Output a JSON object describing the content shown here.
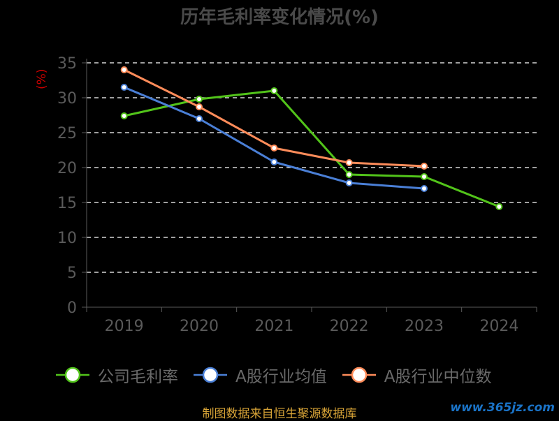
{
  "title": "历年毛利率变化情况(%)",
  "ylabel": "(%)",
  "footer": "制图数据来自恒生聚源数据库",
  "watermark": "www.365jz.com",
  "colors": {
    "background": "#000000",
    "axis": "#5a5a5a",
    "tick_label": "#5a5a5a",
    "grid": "#ffffff"
  },
  "chart_data": {
    "type": "line",
    "title": "历年毛利率变化情况(%)",
    "xlabel": "",
    "ylabel": "(%)",
    "x": [
      "2019",
      "2020",
      "2021",
      "2022",
      "2023",
      "2024"
    ],
    "y_ticks": [
      "0",
      "5",
      "10",
      "15",
      "20",
      "25",
      "30",
      "35"
    ],
    "ylim": [
      0,
      35
    ],
    "grid": "horizontal dashed",
    "legend": "bottom",
    "series": [
      {
        "name": "公司毛利率",
        "color": "#52c41a",
        "values": [
          27.4,
          29.8,
          31.0,
          19.0,
          18.7,
          14.4
        ]
      },
      {
        "name": "A股行业均值",
        "color": "#4a7fd6",
        "values": [
          31.5,
          27.0,
          20.8,
          17.8,
          17.0,
          null
        ]
      },
      {
        "name": "A股行业中位数",
        "color": "#ff8c5a",
        "values": [
          34.0,
          28.7,
          22.8,
          20.7,
          20.2,
          null
        ]
      }
    ]
  }
}
